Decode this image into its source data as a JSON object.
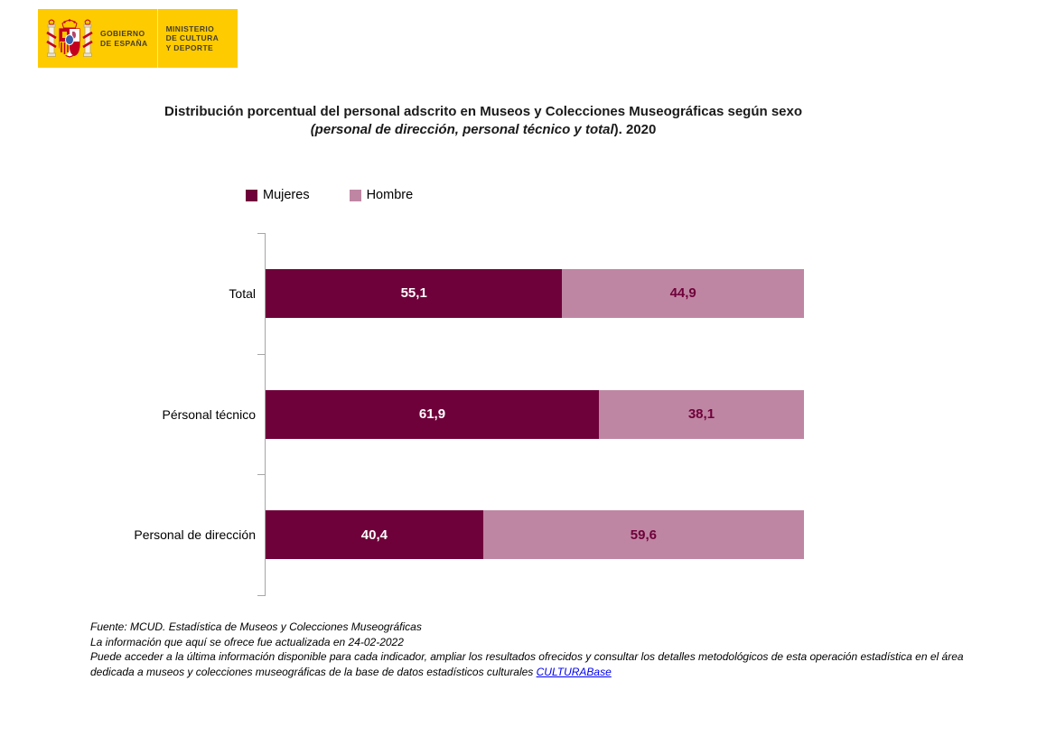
{
  "logo": {
    "government_line1": "GOBIERNO",
    "government_line2": "DE ESPAÑA",
    "ministry_line1": "MINISTERIO",
    "ministry_line2": "DE CULTURA",
    "ministry_line3": "Y DEPORTE",
    "background_color": "#fecb00"
  },
  "title": {
    "line1": "Distribución porcentual del personal adscrito en Museos y Colecciones Museográficas según sexo",
    "line2_italic": "(personal de dirección, personal técnico y total",
    "line2_regular": "). 2020"
  },
  "legend": [
    {
      "label": "Mujeres",
      "color": "#6f013a"
    },
    {
      "label": "Hombre",
      "color": "#bf86a3"
    }
  ],
  "chart_data": {
    "type": "bar",
    "orientation": "horizontal",
    "stacked": true,
    "title": "Distribución porcentual del personal adscrito en Museos y Colecciones Museográficas según sexo (personal de dirección, personal técnico y total). 2020",
    "categories": [
      "Total",
      "Pérsonal técnico",
      "Personal de dirección"
    ],
    "series": [
      {
        "name": "Mujeres",
        "color": "#6f013a",
        "label_color": "#ffffff",
        "values": [
          55.1,
          61.9,
          40.4
        ]
      },
      {
        "name": "Hombre",
        "color": "#bf86a3",
        "label_color": "#6f013a",
        "values": [
          44.9,
          38.1,
          59.6
        ]
      }
    ],
    "value_labels": [
      [
        "55,1",
        "44,9"
      ],
      [
        "61,9",
        "38,1"
      ],
      [
        "40,4",
        "59,6"
      ]
    ],
    "xlim": [
      0,
      100
    ],
    "grid": false,
    "legend_position": "top",
    "axis_color": "#a6a6a6"
  },
  "footer": {
    "line1": "Fuente: MCUD. Estadística de Museos y Colecciones Museográficas",
    "line2": "La información que aquí se ofrece fue actualizada en 24-02-2022",
    "line3": "Puede acceder a la última información disponible para cada indicador, ampliar los resultados ofrecidos y  consultar los detalles metodológicos de esta operación estadística en el área dedicada a museos y colecciones museográficas de la base de datos estadísticos culturales ",
    "link": "CULTURABase"
  }
}
